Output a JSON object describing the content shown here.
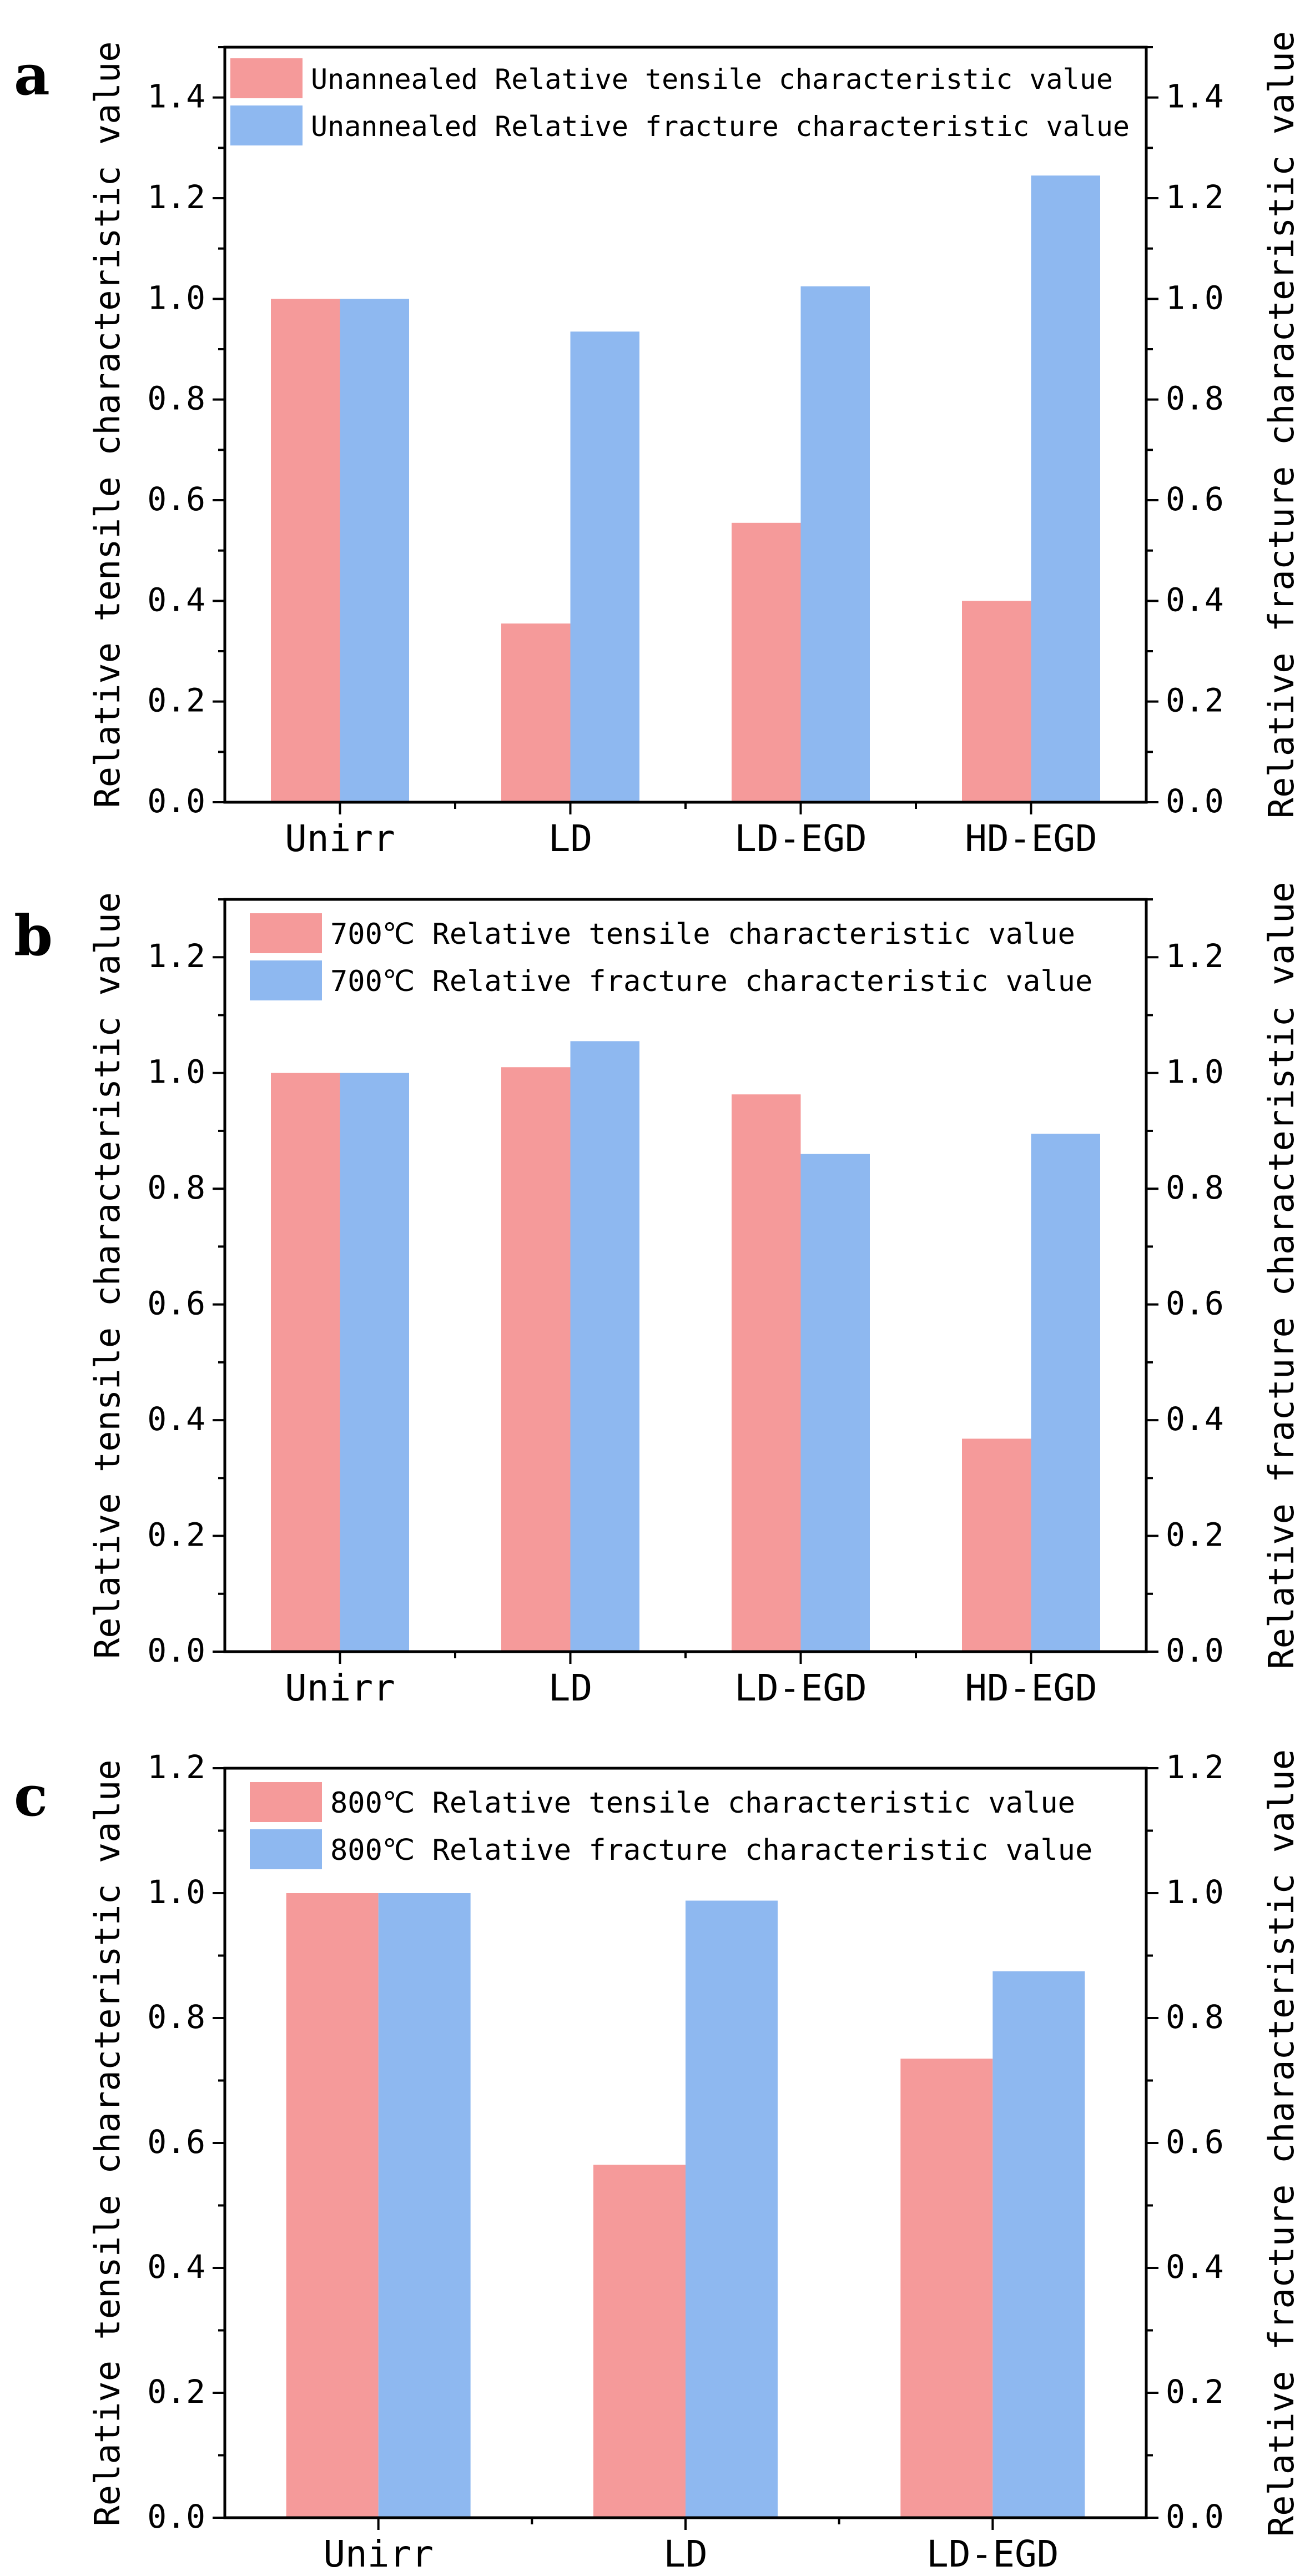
{
  "chart_data": [
    {
      "panel": "a",
      "type": "bar",
      "categories": [
        "Unirr",
        "LD",
        "LD-EGD",
        "HD-EGD"
      ],
      "series": [
        {
          "name": "Unannealed Relative tensile characteristic value",
          "axis": "left",
          "color": "#f59a9a",
          "values": [
            1.0,
            0.355,
            0.555,
            0.4
          ]
        },
        {
          "name": "Unannealed Relative fracture characteristic value",
          "axis": "right",
          "color": "#8eb8f0",
          "values": [
            1.0,
            0.935,
            1.025,
            1.245
          ]
        }
      ],
      "ylabel": "Relative tensile characteristic value",
      "y2label": "Relative fracture characteristic value",
      "ylim": [
        0,
        1.5
      ],
      "y2lim": [
        0,
        1.5
      ],
      "yticks": [
        "0.0",
        "0.2",
        "0.4",
        "0.6",
        "0.8",
        "1.0",
        "1.2",
        "1.4"
      ],
      "legend": "top-left"
    },
    {
      "panel": "b",
      "type": "bar",
      "categories": [
        "Unirr",
        "LD",
        "LD-EGD",
        "HD-EGD"
      ],
      "series": [
        {
          "name": "700℃ Relative tensile characteristic value",
          "axis": "left",
          "color": "#f59a9a",
          "values": [
            1.0,
            1.01,
            0.963,
            0.368
          ]
        },
        {
          "name": "700℃ Relative fracture characteristic value",
          "axis": "right",
          "color": "#8eb8f0",
          "values": [
            1.0,
            1.055,
            0.86,
            0.895
          ]
        }
      ],
      "ylabel": "Relative tensile characteristic value",
      "y2label": "Relative fracture characteristic value",
      "ylim": [
        0,
        1.3
      ],
      "y2lim": [
        0,
        1.3
      ],
      "yticks": [
        "0.0",
        "0.2",
        "0.4",
        "0.6",
        "0.8",
        "1.0",
        "1.2"
      ],
      "legend": "top-left"
    },
    {
      "panel": "c",
      "type": "bar",
      "categories": [
        "Unirr",
        "LD",
        "LD-EGD"
      ],
      "series": [
        {
          "name": "800℃ Relative tensile characteristic value",
          "axis": "left",
          "color": "#f59a9a",
          "values": [
            1.0,
            0.565,
            0.735
          ]
        },
        {
          "name": "800℃ Relative fracture characteristic value",
          "axis": "right",
          "color": "#8eb8f0",
          "values": [
            1.0,
            0.988,
            0.875
          ]
        }
      ],
      "ylabel": "Relative tensile characteristic value",
      "y2label": "Relative fracture characteristic value",
      "ylim": [
        0,
        1.2
      ],
      "y2lim": [
        0,
        1.2
      ],
      "yticks": [
        "0.0",
        "0.2",
        "0.4",
        "0.6",
        "0.8",
        "1.0",
        "1.2"
      ],
      "legend": "top-left"
    }
  ]
}
